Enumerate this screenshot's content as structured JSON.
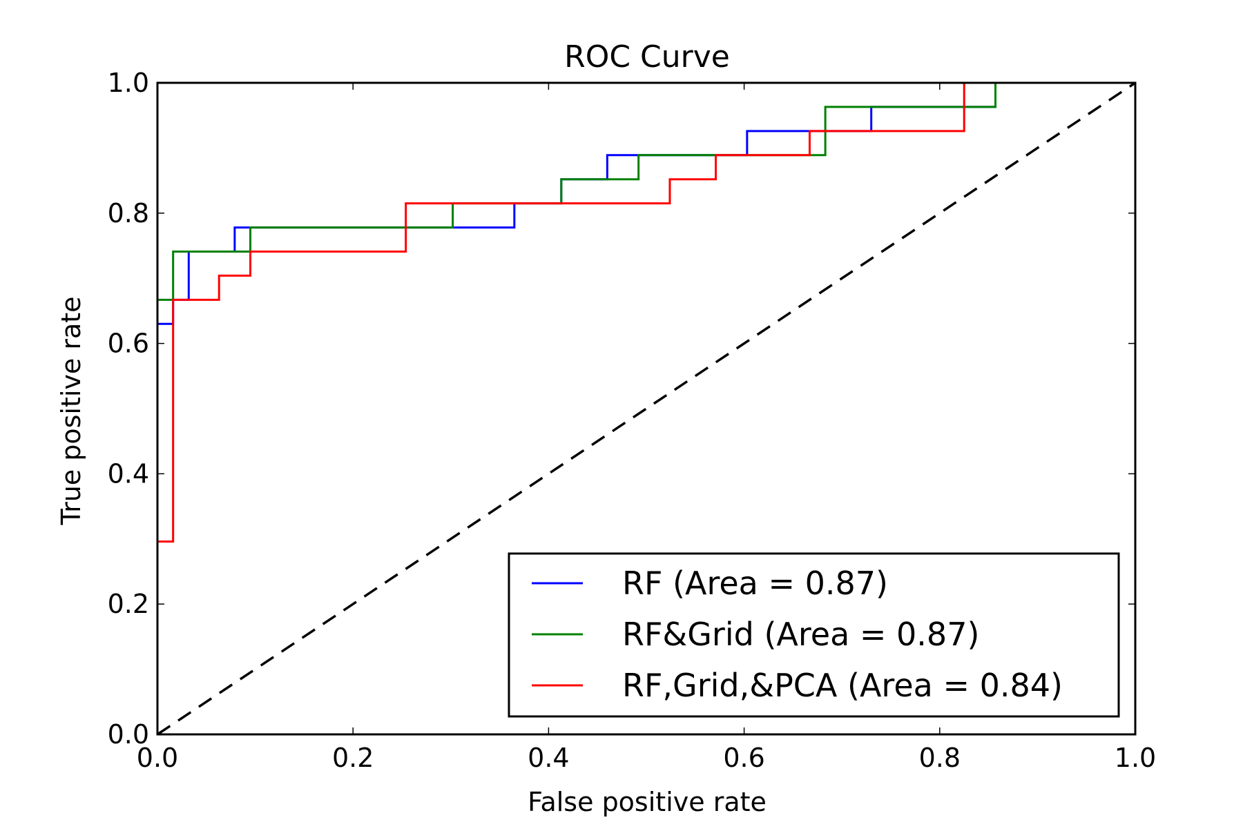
{
  "chart_data": {
    "type": "line",
    "title": "ROC Curve",
    "xlabel": "False positive rate",
    "ylabel": "True positive rate",
    "xlim": [
      0.0,
      1.0
    ],
    "ylim": [
      0.0,
      1.0
    ],
    "x_ticks": [
      "0.0",
      "0.2",
      "0.4",
      "0.6",
      "0.8",
      "1.0"
    ],
    "y_ticks": [
      "0.0",
      "0.2",
      "0.4",
      "0.6",
      "0.8",
      "1.0"
    ],
    "grid": false,
    "legend_position": "lower-right",
    "diagonal": {
      "x": [
        0.0,
        1.0
      ],
      "y": [
        0.0,
        1.0
      ],
      "color": "#000000",
      "style": "dashed"
    },
    "series": [
      {
        "name": "RF (Area = 0.87)",
        "color": "#0000ff",
        "x": [
          0.0,
          0.0,
          0.016,
          0.016,
          0.032,
          0.032,
          0.079,
          0.079,
          0.302,
          0.302,
          0.365,
          0.365,
          0.413,
          0.413,
          0.46,
          0.46,
          0.603,
          0.603,
          0.73,
          0.73,
          0.825,
          0.825,
          0.857,
          0.857,
          1.0
        ],
        "y": [
          0.0,
          0.63,
          0.63,
          0.667,
          0.667,
          0.741,
          0.741,
          0.778,
          0.778,
          0.778,
          0.778,
          0.815,
          0.815,
          0.852,
          0.852,
          0.889,
          0.889,
          0.926,
          0.926,
          0.963,
          0.963,
          0.963,
          0.963,
          1.0,
          1.0
        ]
      },
      {
        "name": "RF&Grid (Area = 0.87)",
        "color": "#008000",
        "x": [
          0.0,
          0.0,
          0.016,
          0.016,
          0.095,
          0.095,
          0.302,
          0.302,
          0.413,
          0.413,
          0.492,
          0.492,
          0.683,
          0.683,
          0.857,
          0.857,
          1.0
        ],
        "y": [
          0.0,
          0.667,
          0.667,
          0.741,
          0.741,
          0.778,
          0.778,
          0.815,
          0.815,
          0.852,
          0.852,
          0.889,
          0.889,
          0.963,
          0.963,
          1.0,
          1.0
        ]
      },
      {
        "name": "RF,Grid,&PCA (Area = 0.84)",
        "color": "#ff0000",
        "x": [
          0.0,
          0.0,
          0.016,
          0.016,
          0.063,
          0.063,
          0.095,
          0.095,
          0.254,
          0.254,
          0.524,
          0.524,
          0.571,
          0.571,
          0.667,
          0.667,
          0.825,
          0.825,
          1.0
        ],
        "y": [
          0.0,
          0.296,
          0.296,
          0.667,
          0.667,
          0.704,
          0.704,
          0.741,
          0.741,
          0.815,
          0.815,
          0.852,
          0.852,
          0.889,
          0.889,
          0.926,
          0.926,
          1.0,
          1.0
        ]
      }
    ]
  }
}
